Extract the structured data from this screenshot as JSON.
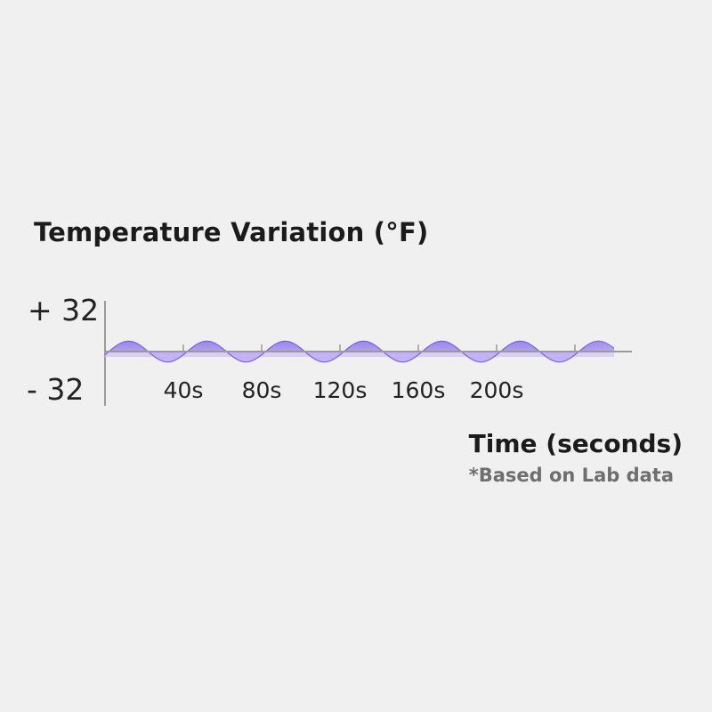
{
  "chart_data": {
    "type": "area",
    "title": "Temperature Variation (°F)",
    "xlabel": "Time (seconds)",
    "footnote": "*Based on Lab data",
    "y_tick_labels": [
      "+ 32",
      "- 32"
    ],
    "y_ticks": [
      32,
      -32
    ],
    "ylim": [
      -32,
      32
    ],
    "x_tick_labels": [
      "40s",
      "80s",
      "120s",
      "160s",
      "200s"
    ],
    "x_ticks": [
      40,
      80,
      120,
      160,
      200
    ],
    "xlim": [
      0,
      260
    ],
    "grid": false,
    "series": [
      {
        "wave": "sinusoid",
        "amplitude": 6,
        "period_s": 40,
        "peaks_at_s": [
          12,
          52,
          92,
          132,
          172,
          212,
          252
        ]
      }
    ],
    "colors": {
      "fill_top": "#9b87ec",
      "fill_bottom": "#c9b9f7",
      "stroke": "#7c62de",
      "axis": "#9a9a9a"
    }
  }
}
